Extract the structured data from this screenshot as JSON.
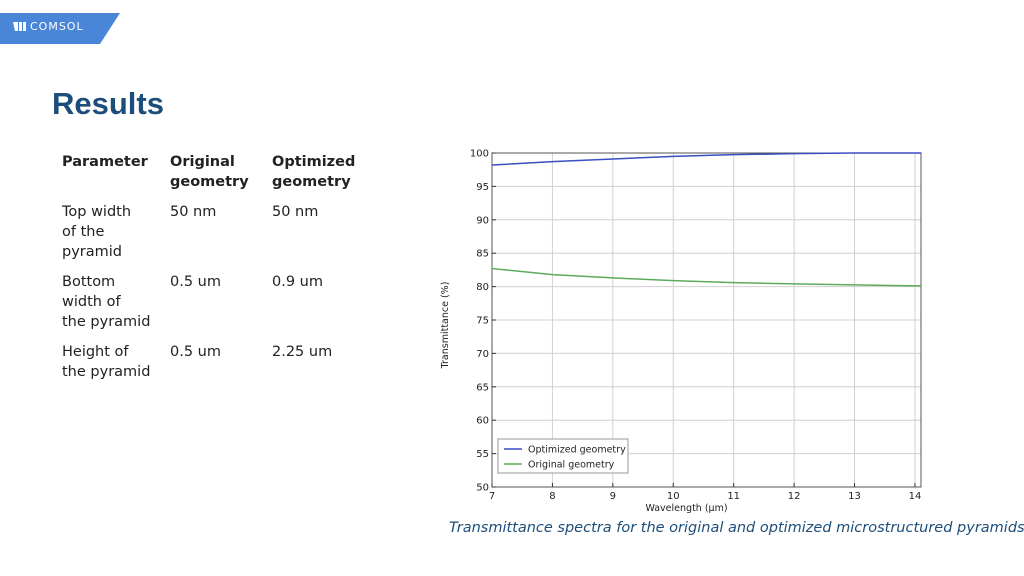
{
  "brand": {
    "logo_text": "COMSOL",
    "color": "#4a86d8"
  },
  "page": {
    "title": "Results",
    "title_color": "#1d4e7b"
  },
  "table": {
    "headers": [
      [
        "Parameter"
      ],
      [
        "Original",
        "geometry"
      ],
      [
        "Optimized",
        "geometry"
      ]
    ],
    "rows": [
      {
        "param": [
          "Top width",
          "of the",
          "pyramid"
        ],
        "original": "50 nm",
        "optimized": "50 nm"
      },
      {
        "param": [
          "Bottom",
          "width of",
          "the pyramid"
        ],
        "original": "0.5 um",
        "optimized": "0.9 um"
      },
      {
        "param": [
          "Height of",
          "the pyramid"
        ],
        "original": "0.5 um",
        "optimized": "2.25 um"
      }
    ]
  },
  "chart_data": {
    "type": "line",
    "xlabel": "Wavelength (µm)",
    "ylabel": "Transmittance (%)",
    "xlim": [
      7,
      14.1
    ],
    "ylim": [
      50,
      100
    ],
    "x_ticks": [
      7,
      8,
      9,
      10,
      11,
      12,
      13,
      14
    ],
    "y_ticks": [
      50,
      55,
      60,
      65,
      70,
      75,
      80,
      85,
      90,
      95,
      100
    ],
    "grid": true,
    "legend_position": "bottom-left",
    "series": [
      {
        "name": "Optimized geometry",
        "color": "#3a4fc0",
        "x": [
          7,
          8,
          9,
          10,
          11,
          12,
          13,
          14.1
        ],
        "y": [
          98.2,
          98.7,
          99.1,
          99.5,
          99.75,
          99.9,
          100,
          100
        ]
      },
      {
        "name": "Original geometry",
        "color": "#5cab5c",
        "x": [
          7,
          8,
          9,
          10,
          11,
          12,
          13,
          14.1
        ],
        "y": [
          82.7,
          81.8,
          81.3,
          80.9,
          80.6,
          80.4,
          80.25,
          80.1
        ]
      }
    ]
  },
  "caption": "Transmittance spectra for the original and optimized microstructured pyramids."
}
